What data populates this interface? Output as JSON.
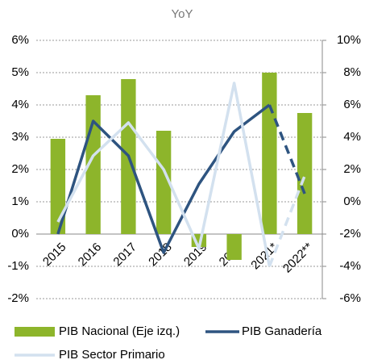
{
  "chart_data": {
    "type": "bar_line_combo",
    "title": "YoY",
    "categories": [
      "2015",
      "2016",
      "2017",
      "2018",
      "2019",
      "2020",
      "2021*",
      "2022**"
    ],
    "series": [
      {
        "name": "PIB Nacional (Eje izq.)",
        "type": "bar",
        "axis": "y",
        "color": "#8db52b",
        "values": [
          2.95,
          4.3,
          4.8,
          3.2,
          -0.4,
          -0.8,
          5.0,
          3.75
        ]
      },
      {
        "name": "PIB Ganadería",
        "type": "line",
        "axis": "y2",
        "color": "#2e5480",
        "values": [
          -2.0,
          5.0,
          2.85,
          -3.15,
          1.1,
          4.35,
          6.0,
          0.5
        ],
        "dashed_from": 6
      },
      {
        "name": "PIB Sector Primario",
        "type": "line",
        "axis": "y2",
        "color": "#d3e1ef",
        "values": [
          -1.25,
          2.85,
          4.9,
          2.0,
          -2.9,
          7.35,
          -4.0,
          1.6
        ],
        "dashed_from": 6
      }
    ],
    "ylim": [
      -2,
      6
    ],
    "yticks": [
      {
        "value": -2,
        "label": "-2%"
      },
      {
        "value": -1,
        "label": "-1%"
      },
      {
        "value": 0,
        "label": "0%"
      },
      {
        "value": 1,
        "label": "1%"
      },
      {
        "value": 2,
        "label": "2%"
      },
      {
        "value": 3,
        "label": "3%"
      },
      {
        "value": 4,
        "label": "4%"
      },
      {
        "value": 5,
        "label": "5%"
      },
      {
        "value": 6,
        "label": "6%"
      }
    ],
    "y2lim": [
      -6,
      10
    ],
    "y2ticks": [
      {
        "value": -6,
        "label": "-6%"
      },
      {
        "value": -4,
        "label": "-4%"
      },
      {
        "value": -2,
        "label": "-2%"
      },
      {
        "value": 0,
        "label": "0%"
      },
      {
        "value": 2,
        "label": "2%"
      },
      {
        "value": 4,
        "label": "4%"
      },
      {
        "value": 6,
        "label": "6%"
      },
      {
        "value": 8,
        "label": "8%"
      },
      {
        "value": 10,
        "label": "10%"
      }
    ],
    "grid": true
  }
}
